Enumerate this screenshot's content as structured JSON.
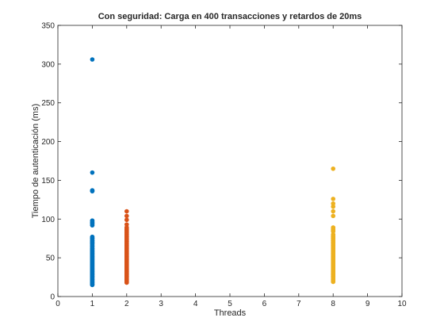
{
  "chart_data": {
    "type": "scatter",
    "title": "Con seguridad: Carga en 400 transacciones y retardos de 20ms",
    "xlabel": "Threads",
    "ylabel": "Tiempo de autenticación (ms)",
    "xlim": [
      0,
      10
    ],
    "ylim": [
      0,
      350
    ],
    "xticks": [
      "0",
      "1",
      "2",
      "3",
      "4",
      "5",
      "6",
      "7",
      "8",
      "9",
      "10"
    ],
    "yticks": [
      "0",
      "50",
      "100",
      "150",
      "200",
      "250",
      "300",
      "350"
    ],
    "grid": false,
    "legend": "none",
    "series": [
      {
        "color": "#0072bd",
        "x": 1,
        "y": [
          306,
          160,
          137,
          136,
          98,
          95,
          92,
          77,
          75,
          72,
          70,
          68,
          65,
          62,
          60,
          58,
          56,
          54,
          52,
          50,
          48,
          46,
          44,
          42,
          40,
          38,
          36,
          34,
          32,
          30,
          28,
          26,
          24,
          22,
          20,
          18,
          16,
          15
        ]
      },
      {
        "color": "#d95319",
        "x": 2,
        "y": [
          110,
          104,
          99,
          93,
          89,
          86,
          83,
          80,
          77,
          74,
          71,
          68,
          66,
          64,
          62,
          60,
          58,
          56,
          54,
          52,
          50,
          48,
          46,
          44,
          42,
          40,
          38,
          36,
          34,
          32,
          30,
          28,
          26,
          24,
          22,
          20,
          18
        ]
      },
      {
        "color": "#edb120",
        "x": 8,
        "y": [
          165,
          126,
          120,
          116,
          110,
          104,
          89,
          86,
          84,
          80,
          77,
          75,
          72,
          70,
          68,
          66,
          64,
          62,
          60,
          58,
          56,
          54,
          52,
          50,
          48,
          46,
          44,
          42,
          40,
          38,
          36,
          34,
          32,
          30,
          28,
          26,
          24,
          22,
          20,
          19
        ]
      }
    ]
  }
}
